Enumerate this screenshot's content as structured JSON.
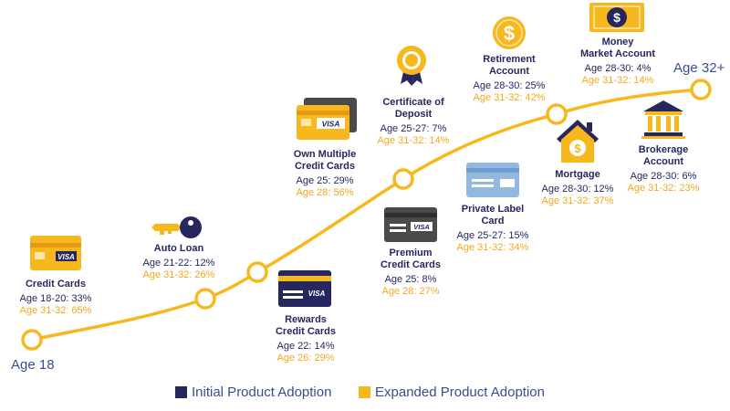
{
  "journey": {
    "start_label": "Age 18",
    "end_label": "Age 32+"
  },
  "products": [
    {
      "id": "credit-cards",
      "title": [
        "Credit Cards"
      ],
      "initial": "Age 18-20: 33%",
      "expanded": "Age 31-32: 65%",
      "icon": "yellow-visa-card-icon"
    },
    {
      "id": "auto-loan",
      "title": [
        "Auto Loan"
      ],
      "initial": "Age 21-22: 12%",
      "expanded": "Age 31-32: 26%",
      "icon": "car-key-icon"
    },
    {
      "id": "rewards-credit-cards",
      "title": [
        "Rewards",
        "Credit Cards"
      ],
      "initial": "Age 22: 14%",
      "expanded": "Age 26: 29%",
      "icon": "navy-visa-card-icon"
    },
    {
      "id": "own-multiple-credit-cards",
      "title": [
        "Own Multiple",
        "Credit Cards"
      ],
      "initial": "Age 25: 29%",
      "expanded": "Age 28: 56%",
      "icon": "stacked-visa-cards-icon"
    },
    {
      "id": "certificate-of-deposit",
      "title": [
        "Certificate of",
        "Deposit"
      ],
      "initial": "Age 25-27: 7%",
      "expanded": "Age 31-32: 14%",
      "icon": "award-ribbon-icon"
    },
    {
      "id": "premium-credit-cards",
      "title": [
        "Premium",
        "Credit Cards"
      ],
      "initial": "Age 25: 8%",
      "expanded": "Age 28: 27%",
      "icon": "gray-visa-card-icon"
    },
    {
      "id": "private-label-card",
      "title": [
        "Private Label",
        "Card"
      ],
      "initial": "Age 25-27: 15%",
      "expanded": "Age 31-32: 34%",
      "icon": "light-blue-card-icon"
    },
    {
      "id": "retirement-account",
      "title": [
        "Retirement",
        "Account"
      ],
      "initial": "Age 28-30: 25%",
      "expanded": "Age 31-32: 42%",
      "icon": "dollar-coin-icon"
    },
    {
      "id": "mortgage",
      "title": [
        "Mortgage"
      ],
      "initial": "Age 28-30: 12%",
      "expanded": "Age 31-32: 37%",
      "icon": "house-dollar-icon"
    },
    {
      "id": "money-market-account",
      "title": [
        "Money",
        "Market Account"
      ],
      "initial": "Age 28-30: 4%",
      "expanded": "Age 31-32: 14%",
      "icon": "dollar-bill-icon"
    },
    {
      "id": "brokerage-account",
      "title": [
        "Brokerage",
        "Account"
      ],
      "initial": "Age 28-30: 6%",
      "expanded": "Age 31-32: 23%",
      "icon": "bank-building-icon"
    }
  ],
  "legend": {
    "initial_label": "Initial Product Adoption",
    "expanded_label": "Expanded Product Adoption"
  },
  "colors": {
    "initial": "#25275e",
    "expanded": "#f2a81c",
    "curve": "#f7b81e",
    "text_blue": "#3a4d8f"
  }
}
